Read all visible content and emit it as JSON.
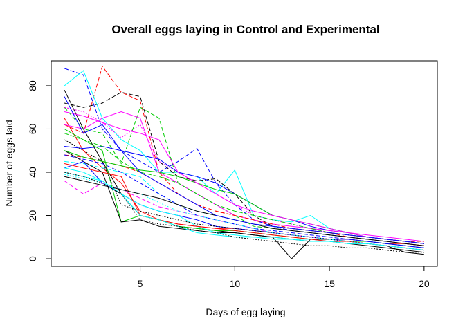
{
  "chart_data": {
    "type": "line",
    "title": "Overall eggs laying in Control and Experimental",
    "xlabel": "Days of egg laying",
    "ylabel": "Number of eggs laid",
    "xlim": [
      0.3,
      20.7
    ],
    "ylim": [
      -3.5,
      91.5
    ],
    "xticks": [
      5,
      10,
      15,
      20
    ],
    "yticks": [
      0,
      20,
      40,
      60,
      80
    ],
    "grid": false,
    "legend": "none",
    "x": [
      1,
      2,
      3,
      4,
      5,
      6,
      7,
      8,
      9,
      10,
      11,
      12,
      13,
      14,
      15,
      16,
      17,
      18,
      19,
      20
    ],
    "series": [
      {
        "color": "#000000",
        "dash": "solid",
        "values": [
          78,
          60,
          45,
          30,
          20,
          18,
          15,
          14,
          13,
          12,
          11,
          10,
          9,
          8,
          8,
          7,
          6,
          5,
          4,
          3
        ]
      },
      {
        "color": "#FF0000",
        "dash": "dashed",
        "values": [
          62,
          58,
          89,
          77,
          73,
          40,
          30,
          25,
          22,
          20,
          18,
          15,
          14,
          13,
          12,
          10,
          9,
          8,
          7,
          6
        ]
      },
      {
        "color": "#00CD00",
        "dash": "dashed",
        "values": [
          70,
          60,
          58,
          44,
          70,
          65,
          35,
          30,
          25,
          20,
          15,
          14,
          13,
          12,
          11,
          10,
          9,
          8,
          7,
          6
        ]
      },
      {
        "color": "#0000FF",
        "dash": "dashed",
        "values": [
          88,
          85,
          60,
          50,
          45,
          40,
          45,
          51,
          35,
          25,
          18,
          15,
          13,
          12,
          11,
          10,
          9,
          8,
          7,
          6
        ]
      },
      {
        "color": "#00FFFF",
        "dash": "solid",
        "values": [
          80,
          87,
          65,
          55,
          50,
          40,
          40,
          38,
          30,
          41,
          20,
          18,
          17,
          20,
          14,
          12,
          10,
          9,
          8,
          7
        ]
      },
      {
        "color": "#FF00FF",
        "dash": "dotted",
        "values": [
          70,
          68,
          63,
          56,
          62,
          45,
          40,
          35,
          30,
          25,
          20,
          18,
          16,
          14,
          12,
          11,
          10,
          9,
          8,
          7
        ]
      },
      {
        "color": "#000000",
        "dash": "dashed",
        "values": [
          72,
          70,
          72,
          77,
          75,
          45,
          38,
          36,
          37,
          30,
          20,
          15,
          14,
          13,
          12,
          11,
          10,
          9,
          8,
          7
        ]
      },
      {
        "color": "#FF0000",
        "dash": "solid",
        "values": [
          65,
          50,
          42,
          35,
          22,
          18,
          16,
          15,
          14,
          14,
          13,
          12,
          11,
          10,
          9,
          9,
          8,
          7,
          7,
          6
        ]
      },
      {
        "color": "#00CD00",
        "dash": "solid",
        "values": [
          60,
          55,
          50,
          17,
          20,
          18,
          15,
          14,
          13,
          13,
          12,
          11,
          10,
          9,
          9,
          8,
          8,
          7,
          6,
          5
        ]
      },
      {
        "color": "#0000FF",
        "dash": "solid",
        "values": [
          52,
          51,
          52,
          50,
          48,
          46,
          40,
          38,
          35,
          30,
          25,
          20,
          18,
          15,
          13,
          12,
          10,
          9,
          8,
          7
        ]
      },
      {
        "color": "#00FFFF",
        "dash": "dashed",
        "values": [
          45,
          44,
          42,
          40,
          38,
          30,
          25,
          22,
          20,
          18,
          16,
          15,
          14,
          13,
          12,
          11,
          10,
          9,
          8,
          7
        ]
      },
      {
        "color": "#FF00FF",
        "dash": "solid",
        "values": [
          62,
          60,
          65,
          68,
          65,
          40,
          35,
          30,
          25,
          20,
          18,
          16,
          15,
          14,
          13,
          12,
          11,
          10,
          9,
          8
        ]
      },
      {
        "color": "#000000",
        "dash": "solid",
        "values": [
          50,
          45,
          40,
          17,
          18,
          15,
          14,
          13,
          12,
          12,
          11,
          10,
          0,
          9,
          9,
          8,
          7,
          6,
          3,
          2
        ]
      },
      {
        "color": "#FF0000",
        "dash": "dashed",
        "values": [
          48,
          47,
          45,
          43,
          40,
          35,
          30,
          25,
          22,
          20,
          18,
          16,
          14,
          13,
          12,
          11,
          10,
          9,
          8,
          8
        ]
      },
      {
        "color": "#00CD00",
        "dash": "dashed",
        "values": [
          58,
          55,
          52,
          45,
          40,
          38,
          35,
          30,
          25,
          22,
          20,
          18,
          16,
          14,
          12,
          11,
          10,
          9,
          8,
          7
        ]
      },
      {
        "color": "#0000FF",
        "dash": "solid",
        "values": [
          42,
          45,
          35,
          30,
          25,
          22,
          20,
          18,
          15,
          14,
          13,
          12,
          11,
          10,
          9,
          9,
          8,
          7,
          6,
          5
        ]
      },
      {
        "color": "#00FFFF",
        "dash": "solid",
        "values": [
          40,
          38,
          36,
          30,
          25,
          22,
          20,
          15,
          12,
          11,
          10,
          10,
          9,
          9,
          8,
          7,
          7,
          6,
          5,
          4
        ]
      },
      {
        "color": "#FF00FF",
        "dash": "dashed",
        "values": [
          36,
          30,
          35,
          32,
          28,
          24,
          22,
          20,
          18,
          16,
          14,
          12,
          11,
          10,
          9,
          8,
          7,
          6,
          5,
          4
        ]
      },
      {
        "color": "#000000",
        "dash": "dotted",
        "values": [
          55,
          50,
          45,
          25,
          22,
          20,
          18,
          16,
          15,
          14,
          13,
          12,
          11,
          10,
          9,
          8,
          7,
          6,
          5,
          4
        ]
      },
      {
        "color": "#FF0000",
        "dash": "solid",
        "values": [
          44,
          42,
          40,
          38,
          20,
          18,
          16,
          15,
          14,
          13,
          12,
          11,
          10,
          9,
          8,
          8,
          7,
          6,
          5,
          4
        ]
      },
      {
        "color": "#00CD00",
        "dash": "solid",
        "values": [
          50,
          47,
          45,
          43,
          41,
          40,
          38,
          35,
          32,
          30,
          25,
          20,
          18,
          16,
          14,
          12,
          10,
          9,
          8,
          7
        ]
      },
      {
        "color": "#0000FF",
        "dash": "dashed",
        "values": [
          48,
          46,
          44,
          40,
          35,
          30,
          25,
          20,
          18,
          16,
          14,
          13,
          12,
          11,
          10,
          9,
          8,
          7,
          6,
          5
        ]
      },
      {
        "color": "#00FFFF",
        "dash": "dotted",
        "values": [
          39,
          37,
          35,
          32,
          30,
          26,
          22,
          20,
          18,
          16,
          14,
          12,
          11,
          10,
          9,
          8,
          7,
          6,
          5,
          4
        ]
      },
      {
        "color": "#FF00FF",
        "dash": "solid",
        "values": [
          68,
          66,
          63,
          60,
          58,
          55,
          40,
          35,
          30,
          25,
          22,
          20,
          18,
          16,
          14,
          12,
          10,
          9,
          8,
          7
        ]
      },
      {
        "color": "#000000",
        "dash": "solid",
        "values": [
          38,
          36,
          34,
          32,
          30,
          28,
          25,
          22,
          20,
          18,
          16,
          14,
          13,
          12,
          11,
          10,
          9,
          8,
          7,
          6
        ]
      },
      {
        "color": "#0000FF",
        "dash": "solid",
        "values": [
          75,
          58,
          62,
          50,
          40,
          35,
          30,
          25,
          20,
          18,
          16,
          15,
          14,
          13,
          12,
          11,
          10,
          9,
          8,
          7
        ]
      },
      {
        "color": "#00FFFF",
        "dash": "solid",
        "values": [
          42,
          40,
          36,
          30,
          20,
          18,
          15,
          12,
          11,
          10,
          10,
          9,
          9,
          8,
          8,
          7,
          7,
          6,
          5,
          4
        ]
      },
      {
        "color": "#000000",
        "dash": "dotted",
        "values": [
          40,
          38,
          35,
          30,
          18,
          16,
          15,
          13,
          12,
          10,
          9,
          8,
          7,
          6,
          6,
          5,
          5,
          4,
          3,
          3
        ]
      }
    ]
  }
}
